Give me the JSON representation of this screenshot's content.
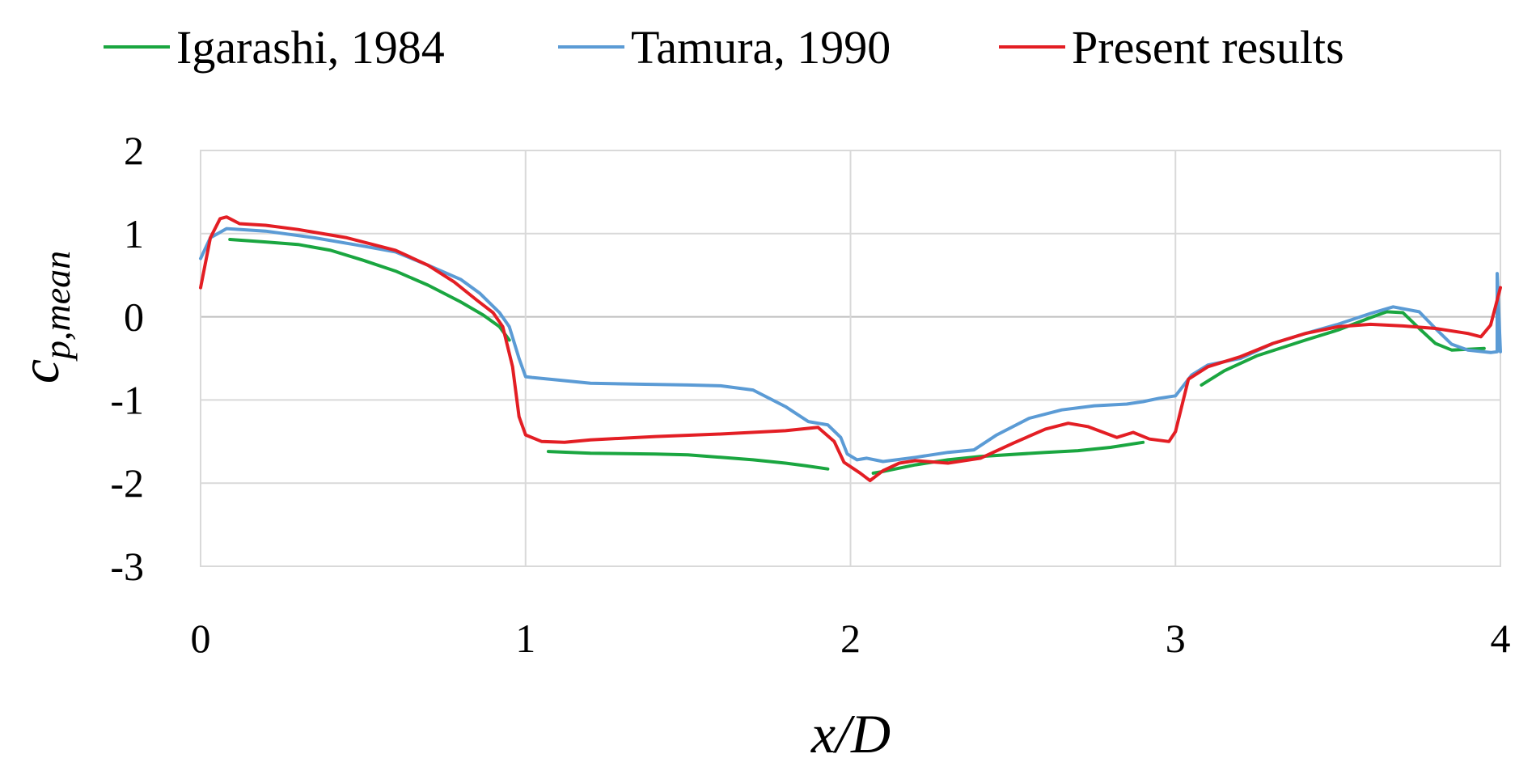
{
  "chart_data": {
    "type": "line",
    "title": "",
    "xlabel": "x/D",
    "ylabel": "c",
    "ylabel_subscript": "p,mean",
    "xlim": [
      0,
      4
    ],
    "ylim": [
      -3,
      2
    ],
    "x_ticks": [
      "0",
      "1",
      "2",
      "3",
      "4"
    ],
    "y_ticks": [
      "2",
      "1",
      "0",
      "-1",
      "-2",
      "-3"
    ],
    "x_tick_values": [
      0,
      1,
      2,
      3,
      4
    ],
    "y_tick_values": [
      2,
      1,
      0,
      -1,
      -2,
      -3
    ],
    "grid": true,
    "legend_position": "top",
    "series": [
      {
        "name": "Igarashi, 1984",
        "color": "#1aa640",
        "segments": [
          [
            [
              0.09,
              0.93
            ],
            [
              0.2,
              0.9
            ],
            [
              0.3,
              0.87
            ],
            [
              0.4,
              0.8
            ],
            [
              0.5,
              0.68
            ],
            [
              0.6,
              0.55
            ],
            [
              0.7,
              0.38
            ],
            [
              0.8,
              0.18
            ],
            [
              0.87,
              0.02
            ],
            [
              0.92,
              -0.12
            ],
            [
              0.95,
              -0.28
            ]
          ],
          [
            [
              1.07,
              -1.62
            ],
            [
              1.2,
              -1.64
            ],
            [
              1.4,
              -1.65
            ],
            [
              1.5,
              -1.66
            ],
            [
              1.6,
              -1.69
            ],
            [
              1.7,
              -1.72
            ],
            [
              1.8,
              -1.76
            ],
            [
              1.86,
              -1.79
            ],
            [
              1.93,
              -1.83
            ]
          ],
          [
            [
              2.07,
              -1.88
            ],
            [
              2.1,
              -1.86
            ],
            [
              2.2,
              -1.78
            ],
            [
              2.3,
              -1.72
            ],
            [
              2.4,
              -1.68
            ],
            [
              2.6,
              -1.63
            ],
            [
              2.7,
              -1.61
            ],
            [
              2.8,
              -1.57
            ],
            [
              2.9,
              -1.51
            ]
          ],
          [
            [
              3.08,
              -0.82
            ],
            [
              3.15,
              -0.65
            ],
            [
              3.25,
              -0.47
            ],
            [
              3.4,
              -0.28
            ],
            [
              3.5,
              -0.16
            ],
            [
              3.6,
              -0.01
            ],
            [
              3.65,
              0.06
            ],
            [
              3.7,
              0.05
            ],
            [
              3.75,
              -0.14
            ],
            [
              3.8,
              -0.32
            ],
            [
              3.85,
              -0.4
            ],
            [
              3.95,
              -0.38
            ]
          ]
        ]
      },
      {
        "name": "Tamura, 1990",
        "color": "#5b9bd5",
        "segments": [
          [
            [
              0.0,
              0.7
            ],
            [
              0.03,
              0.95
            ],
            [
              0.08,
              1.06
            ],
            [
              0.2,
              1.03
            ],
            [
              0.35,
              0.95
            ],
            [
              0.5,
              0.85
            ],
            [
              0.6,
              0.78
            ],
            [
              0.7,
              0.62
            ],
            [
              0.8,
              0.45
            ],
            [
              0.86,
              0.28
            ],
            [
              0.92,
              0.05
            ],
            [
              0.95,
              -0.12
            ],
            [
              0.98,
              -0.5
            ],
            [
              1.0,
              -0.72
            ],
            [
              1.02,
              -0.73
            ],
            [
              1.1,
              -0.76
            ],
            [
              1.2,
              -0.8
            ],
            [
              1.35,
              -0.81
            ],
            [
              1.5,
              -0.82
            ],
            [
              1.6,
              -0.83
            ],
            [
              1.7,
              -0.88
            ],
            [
              1.8,
              -1.08
            ],
            [
              1.87,
              -1.26
            ],
            [
              1.93,
              -1.3
            ],
            [
              1.97,
              -1.45
            ],
            [
              1.99,
              -1.65
            ],
            [
              2.02,
              -1.72
            ],
            [
              2.05,
              -1.7
            ],
            [
              2.1,
              -1.74
            ],
            [
              2.2,
              -1.69
            ],
            [
              2.3,
              -1.63
            ],
            [
              2.38,
              -1.6
            ],
            [
              2.45,
              -1.42
            ],
            [
              2.55,
              -1.22
            ],
            [
              2.65,
              -1.12
            ],
            [
              2.75,
              -1.07
            ],
            [
              2.85,
              -1.05
            ],
            [
              2.9,
              -1.02
            ],
            [
              2.95,
              -0.98
            ],
            [
              3.0,
              -0.95
            ],
            [
              3.05,
              -0.7
            ],
            [
              3.1,
              -0.58
            ],
            [
              3.2,
              -0.5
            ],
            [
              3.3,
              -0.32
            ],
            [
              3.4,
              -0.2
            ],
            [
              3.5,
              -0.09
            ],
            [
              3.6,
              0.04
            ],
            [
              3.67,
              0.12
            ],
            [
              3.75,
              0.06
            ],
            [
              3.8,
              -0.14
            ],
            [
              3.85,
              -0.33
            ],
            [
              3.9,
              -0.4
            ],
            [
              3.97,
              -0.43
            ],
            [
              3.99,
              -0.42
            ],
            [
              3.99,
              0.52
            ],
            [
              4.0,
              -0.42
            ]
          ]
        ]
      },
      {
        "name": "Present results",
        "color": "#e31e24",
        "segments": [
          [
            [
              0.0,
              0.35
            ],
            [
              0.03,
              0.95
            ],
            [
              0.06,
              1.18
            ],
            [
              0.08,
              1.2
            ],
            [
              0.12,
              1.12
            ],
            [
              0.2,
              1.1
            ],
            [
              0.3,
              1.05
            ],
            [
              0.45,
              0.95
            ],
            [
              0.6,
              0.8
            ],
            [
              0.7,
              0.62
            ],
            [
              0.78,
              0.42
            ],
            [
              0.85,
              0.2
            ],
            [
              0.9,
              0.05
            ],
            [
              0.93,
              -0.12
            ],
            [
              0.96,
              -0.6
            ],
            [
              0.98,
              -1.2
            ],
            [
              1.0,
              -1.42
            ],
            [
              1.05,
              -1.5
            ],
            [
              1.12,
              -1.51
            ],
            [
              1.2,
              -1.48
            ],
            [
              1.4,
              -1.44
            ],
            [
              1.6,
              -1.41
            ],
            [
              1.8,
              -1.37
            ],
            [
              1.9,
              -1.33
            ],
            [
              1.95,
              -1.5
            ],
            [
              1.98,
              -1.75
            ],
            [
              2.03,
              -1.88
            ],
            [
              2.06,
              -1.97
            ],
            [
              2.1,
              -1.85
            ],
            [
              2.15,
              -1.76
            ],
            [
              2.2,
              -1.73
            ],
            [
              2.3,
              -1.76
            ],
            [
              2.4,
              -1.7
            ],
            [
              2.5,
              -1.52
            ],
            [
              2.6,
              -1.35
            ],
            [
              2.67,
              -1.28
            ],
            [
              2.73,
              -1.32
            ],
            [
              2.82,
              -1.45
            ],
            [
              2.87,
              -1.39
            ],
            [
              2.92,
              -1.47
            ],
            [
              2.98,
              -1.5
            ],
            [
              3.0,
              -1.38
            ],
            [
              3.04,
              -0.75
            ],
            [
              3.1,
              -0.6
            ],
            [
              3.2,
              -0.48
            ],
            [
              3.3,
              -0.32
            ],
            [
              3.4,
              -0.2
            ],
            [
              3.5,
              -0.12
            ],
            [
              3.6,
              -0.09
            ],
            [
              3.7,
              -0.11
            ],
            [
              3.8,
              -0.14
            ],
            [
              3.9,
              -0.2
            ],
            [
              3.94,
              -0.24
            ],
            [
              3.97,
              -0.1
            ],
            [
              4.0,
              0.35
            ]
          ]
        ]
      }
    ]
  }
}
